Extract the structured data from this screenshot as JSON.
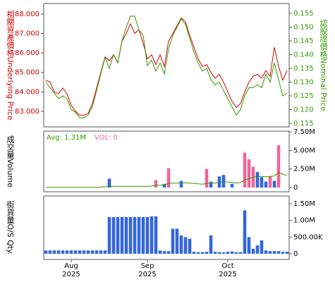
{
  "chart_data": [
    {
      "type": "line",
      "ylabel": "相關資產價格Underlying Price",
      "y2label": "認股證價格Nominal Price",
      "ylim": [
        82.2,
        88.54
      ],
      "yticks": [
        {
          "value": 83,
          "label": "83.000"
        },
        {
          "value": 84,
          "label": "84.000"
        },
        {
          "value": 85,
          "label": "85.000"
        },
        {
          "value": 86,
          "label": "86.000"
        },
        {
          "value": 87,
          "label": "87.000"
        },
        {
          "value": 88,
          "label": "88.000"
        }
      ],
      "y2lim": [
        0.1137,
        0.1586
      ],
      "y2ticks": [
        {
          "value": 0.115,
          "label": "0.115"
        },
        {
          "value": 0.12,
          "label": "0.120"
        },
        {
          "value": 0.125,
          "label": "0.125"
        },
        {
          "value": 0.13,
          "label": "0.130"
        },
        {
          "value": 0.135,
          "label": "0.135"
        },
        {
          "value": 0.14,
          "label": "0.140"
        },
        {
          "value": 0.145,
          "label": "0.145"
        },
        {
          "value": 0.15,
          "label": "0.150"
        },
        {
          "value": 0.155,
          "label": "0.155"
        }
      ],
      "ycolor": "#cc0000",
      "y2color": "#339900",
      "series": [
        {
          "color": "#dd0000",
          "values": [
            84.6,
            84.5,
            84.0,
            83.9,
            84.2,
            83.9,
            83.3,
            83.0,
            82.8,
            82.8,
            82.9,
            83.4,
            84.2,
            85.0,
            85.8,
            85.6,
            85.9,
            85.5,
            86.6,
            87.0,
            87.5,
            87.0,
            87.2,
            86.5,
            85.7,
            85.9,
            85.4,
            85.9,
            85.3,
            86.6,
            87.0,
            87.4,
            87.8,
            87.6,
            86.9,
            86.3,
            85.7,
            85.3,
            85.4,
            85.0,
            84.7,
            84.9,
            84.5,
            84.0,
            83.5,
            83.2,
            83.4,
            84.0,
            84.5,
            84.8,
            84.9,
            84.7,
            85.1,
            84.8,
            86.3,
            85.3,
            84.6,
            85.1
          ]
        },
        {
          "color": "#339900",
          "axis": "y2",
          "values": [
            0.13,
            0.128,
            0.126,
            0.124,
            0.125,
            0.124,
            0.12,
            0.119,
            0.117,
            0.117,
            0.118,
            0.121,
            0.127,
            0.133,
            0.139,
            0.135,
            0.14,
            0.137,
            0.145,
            0.15,
            0.154,
            0.154,
            0.149,
            0.147,
            0.136,
            0.138,
            0.134,
            0.137,
            0.133,
            0.142,
            0.147,
            0.15,
            0.153,
            0.151,
            0.146,
            0.141,
            0.137,
            0.134,
            0.135,
            0.131,
            0.129,
            0.13,
            0.127,
            0.124,
            0.121,
            0.118,
            0.12,
            0.125,
            0.128,
            0.128,
            0.129,
            0.128,
            0.133,
            0.13,
            0.137,
            0.131,
            0.125,
            0.126
          ]
        }
      ]
    },
    {
      "type": "bar",
      "ylabel": "成交量Volume",
      "ylim": [
        -570000,
        7600000
      ],
      "y2ticks": [
        0,
        {
          "value": 2500000,
          "label": "2.50M"
        },
        {
          "value": 5000000,
          "label": "5.00M"
        },
        {
          "value": 7500000,
          "label": "7.50M"
        }
      ],
      "annotations": [
        {
          "text": "Avg: 1.31M",
          "color": "#339900"
        },
        {
          "text": "VOL: 0",
          "color": "#ee6699"
        }
      ],
      "values": [
        0,
        0,
        0,
        0,
        0,
        0,
        0,
        0,
        0,
        0,
        0,
        0,
        0,
        0,
        0,
        1200000,
        0,
        0,
        0,
        0,
        0,
        0,
        0,
        0,
        0,
        0,
        1000000,
        0,
        500000,
        2600000,
        0,
        0,
        900000,
        0,
        0,
        0,
        0,
        0,
        2500000,
        800000,
        0,
        1500000,
        1700000,
        0,
        500000,
        0,
        0,
        4700000,
        3800000,
        2800000,
        2100000,
        1400000,
        800000,
        1500000,
        900000,
        5700000,
        0,
        0
      ],
      "bar_colors": [
        "#3366dd",
        "#3366dd",
        "#3366dd",
        "#3366dd",
        "#3366dd",
        "#3366dd",
        "#3366dd",
        "#3366dd",
        "#3366dd",
        "#3366dd",
        "#3366dd",
        "#3366dd",
        "#3366dd",
        "#3366dd",
        "#3366dd",
        "#3366dd",
        "#3366dd",
        "#3366dd",
        "#3366dd",
        "#3366dd",
        "#3366dd",
        "#3366dd",
        "#3366dd",
        "#3366dd",
        "#3366dd",
        "#3366dd",
        "#ee6699",
        "#3366dd",
        "#3366dd",
        "#ee6699",
        "#3366dd",
        "#3366dd",
        "#3366dd",
        "#3366dd",
        "#3366dd",
        "#3366dd",
        "#3366dd",
        "#3366dd",
        "#ee6699",
        "#3366dd",
        "#3366dd",
        "#3366dd",
        "#3366dd",
        "#3366dd",
        "#3366dd",
        "#3366dd",
        "#3366dd",
        "#ee6699",
        "#ee6699",
        "#ee6699",
        "#3366dd",
        "#3366dd",
        "#3366dd",
        "#ee6699",
        "#3366dd",
        "#ee6699",
        "#3366dd",
        "#3366dd"
      ],
      "avg_color": "#339900",
      "avg_values": [
        20000,
        20000,
        20000,
        20000,
        20000,
        20000,
        20000,
        20000,
        20000,
        20000,
        20000,
        20000,
        20000,
        60000,
        100000,
        150000,
        150000,
        150000,
        150000,
        150000,
        150000,
        150000,
        150000,
        150000,
        150000,
        200000,
        300000,
        300000,
        350000,
        550000,
        600000,
        600000,
        650000,
        650000,
        600000,
        550000,
        500000,
        450000,
        550000,
        600000,
        600000,
        700000,
        800000,
        750000,
        700000,
        600000,
        700000,
        1000000,
        1200000,
        1400000,
        1500000,
        1500000,
        1450000,
        1500000,
        1550000,
        2000000,
        1800000,
        1600000
      ]
    },
    {
      "type": "bar",
      "ylabel": "街貨量O/S Qty.",
      "ylim": [
        -170000,
        1730000
      ],
      "y2ticks": [
        0,
        {
          "value": 500000,
          "label": "500.00K"
        },
        {
          "value": 1000000,
          "label": "1.00M"
        },
        {
          "value": 1500000,
          "label": "1.50M"
        }
      ],
      "color": "#3366dd",
      "categories": [
        null,
        null,
        null,
        null,
        null,
        null,
        "Aug 2025",
        null,
        null,
        null,
        null,
        null,
        null,
        null,
        null,
        null,
        null,
        null,
        null,
        null,
        null,
        null,
        null,
        null,
        "Sep 2025",
        null,
        null,
        null,
        null,
        null,
        null,
        null,
        null,
        null,
        null,
        null,
        null,
        null,
        null,
        null,
        null,
        null,
        null,
        "Oct 2025",
        null,
        null,
        null,
        null,
        null,
        null,
        null,
        null,
        null,
        null,
        null,
        null,
        null,
        null
      ],
      "values": [
        100000,
        100000,
        100000,
        100000,
        100000,
        100000,
        100000,
        100000,
        100000,
        100000,
        100000,
        100000,
        100000,
        100000,
        100000,
        1100000,
        1100000,
        1100000,
        1100000,
        1100000,
        1100000,
        1100000,
        1100000,
        1100000,
        1100000,
        1120000,
        1120000,
        100000,
        80000,
        80000,
        750000,
        750000,
        550000,
        500000,
        450000,
        60000,
        50000,
        50000,
        60000,
        550000,
        60000,
        50000,
        40000,
        60000,
        70000,
        50000,
        50000,
        1300000,
        500000,
        150000,
        250000,
        400000,
        100000,
        80000,
        80000,
        80000,
        60000,
        60000
      ]
    }
  ]
}
